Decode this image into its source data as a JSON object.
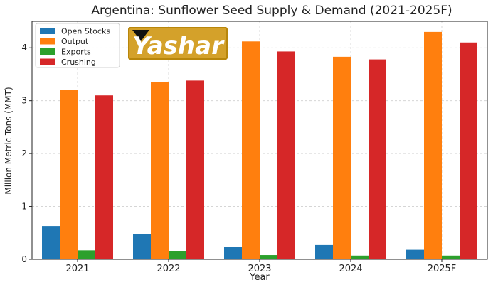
{
  "logo": {
    "text": "Yashar"
  },
  "chart_data": {
    "type": "bar",
    "title": "Argentina: Sunflower Seed Supply & Demand (2021-2025F)",
    "xlabel": "Year",
    "ylabel": "Million Metric Tons (MMT)",
    "categories": [
      "2021",
      "2022",
      "2023",
      "2024",
      "2025F"
    ],
    "ylim": [
      0,
      4.5
    ],
    "yticks": [
      0,
      1,
      2,
      3,
      4
    ],
    "grid": true,
    "legend_position": "top-left",
    "series": [
      {
        "name": "Open Stocks",
        "color": "#1f77b4",
        "values": [
          0.63,
          0.48,
          0.23,
          0.27,
          0.18
        ]
      },
      {
        "name": "Output",
        "color": "#ff7f0e",
        "values": [
          3.2,
          3.35,
          4.12,
          3.83,
          4.3
        ]
      },
      {
        "name": "Exports",
        "color": "#2ca02c",
        "values": [
          0.17,
          0.15,
          0.08,
          0.07,
          0.07
        ]
      },
      {
        "name": "Crushing",
        "color": "#d62728",
        "values": [
          3.1,
          3.38,
          3.93,
          3.78,
          4.1
        ]
      }
    ]
  }
}
